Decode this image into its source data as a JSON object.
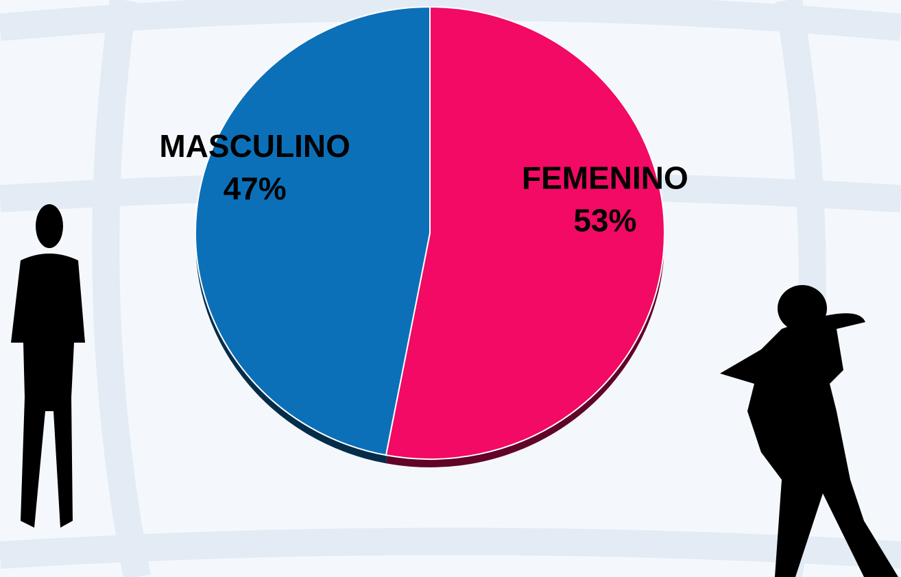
{
  "chart_data": {
    "type": "pie",
    "categories": [
      "FEMENINO",
      "MASCULINO"
    ],
    "values": [
      53,
      47
    ],
    "value_labels": [
      "53%",
      "47%"
    ],
    "colors": [
      "#f20a65",
      "#0c70b9"
    ]
  }
}
